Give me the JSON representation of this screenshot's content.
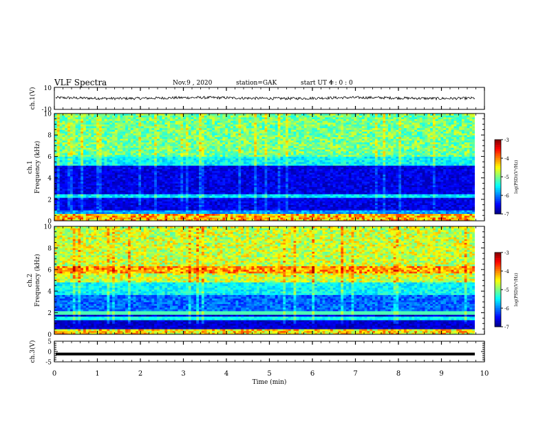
{
  "header": {
    "title": "VLF Spectra",
    "date": "Nov.9 , 2020",
    "station": "station=GAK",
    "start_ut_label": "start UT =",
    "start_ut_value": "4 : 0 : 0"
  },
  "chart_data": [
    {
      "type": "line",
      "panel": "ch1-waveform",
      "ylabel": "ch.1(V)",
      "ylim": [
        -10,
        10
      ],
      "ytick_labels": [
        "10",
        "-10"
      ],
      "xlim": [
        0,
        10
      ],
      "series": [
        {
          "values_note": "noisy waveform",
          "mean": 0.3,
          "amplitude": 1.2
        }
      ]
    },
    {
      "type": "heatmap",
      "panel": "ch1-spectrogram",
      "ylabel": "ch.1 Frequency (kHz)",
      "ylim": [
        0,
        10
      ],
      "ytick_labels": [
        "0",
        "2",
        "4",
        "6",
        "8",
        "10"
      ],
      "xlim": [
        0,
        10
      ],
      "colorbar": {
        "label": "log(PSD)(V²/Hz)",
        "range": [
          -7,
          -3
        ],
        "tick_labels": [
          "-3",
          "-4",
          "-5",
          "-6",
          "-7"
        ]
      }
    },
    {
      "type": "heatmap",
      "panel": "ch2-spectrogram",
      "ylabel": "ch.2 Frequency (kHz)",
      "ylim": [
        0,
        10
      ],
      "ytick_labels": [
        "0",
        "2",
        "4",
        "6",
        "8",
        "10"
      ],
      "xlim": [
        0,
        10
      ],
      "colorbar": {
        "label": "log(PSD)(V²/Hz)",
        "range": [
          -7,
          -3
        ],
        "tick_labels": [
          "-3",
          "-4",
          "-5",
          "-6",
          "-7"
        ]
      }
    },
    {
      "type": "line",
      "panel": "ch3-waveform",
      "ylabel": "ch.3(V)",
      "ylim": [
        -5,
        5
      ],
      "ytick_labels": [
        "5",
        "0",
        "-5"
      ],
      "xlim": [
        0,
        10
      ],
      "series": [
        {
          "values_note": "flat",
          "mean": -1.2
        }
      ]
    }
  ],
  "xaxis": {
    "label": "Time (min)",
    "tick_labels": [
      "0",
      "1",
      "2",
      "3",
      "4",
      "5",
      "6",
      "7",
      "8",
      "9",
      "10"
    ]
  },
  "colors": {
    "spec_low": "#000066",
    "spec_high": "#ff0000",
    "line": "#000000"
  }
}
